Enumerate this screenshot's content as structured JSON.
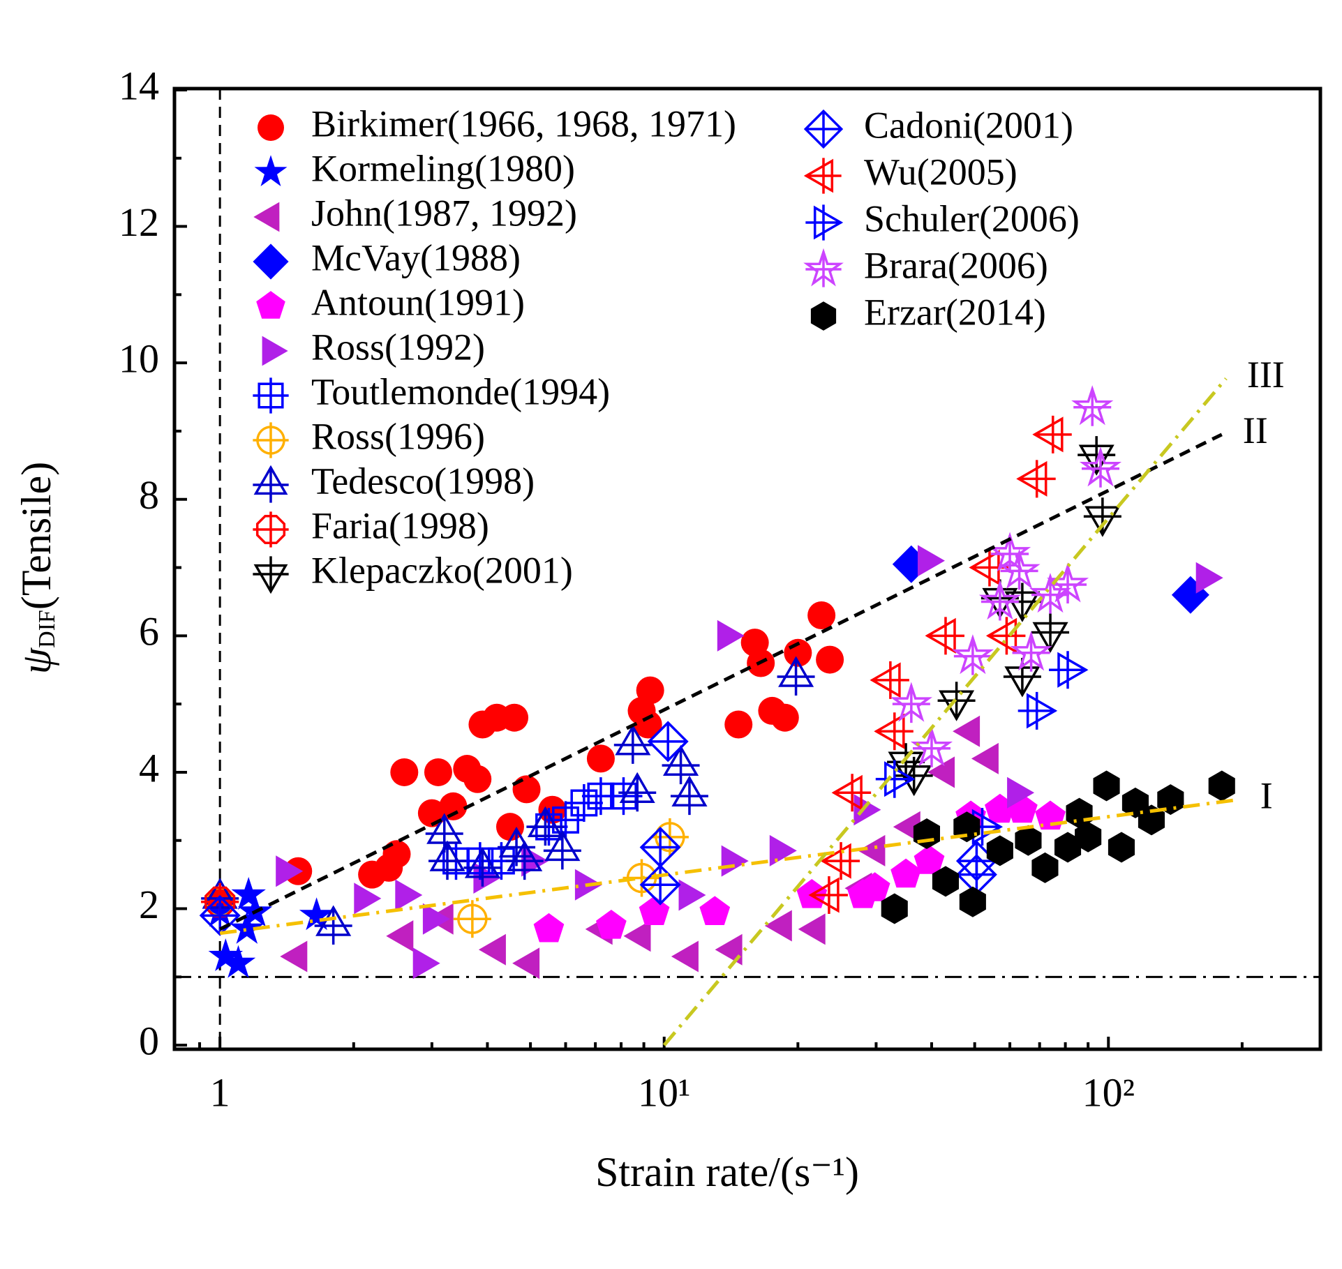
{
  "chart_data": {
    "type": "scatter",
    "xscale": "log",
    "xlim": [
      0.79,
      300
    ],
    "ylim": [
      -0.06,
      14.02
    ],
    "xticks": [
      1,
      {
        "value": 10,
        "label": "10¹"
      },
      {
        "value": 100,
        "label": "10²"
      }
    ],
    "xminorticks": [
      0.9,
      2,
      3,
      4,
      5,
      6,
      7,
      8,
      9,
      20,
      30,
      40,
      50,
      60,
      70,
      80,
      90,
      200,
      300
    ],
    "yticks": [
      0,
      2,
      4,
      6,
      8,
      10,
      12,
      14
    ],
    "yminorticks": [
      1,
      3,
      5,
      7,
      9,
      11,
      13
    ],
    "xlabel": "Strain rate/(s⁻¹)",
    "ylabel": {
      "symbol": "ψ",
      "subscript": "DIF",
      "text": "(Tensile)"
    },
    "legend": "upper left",
    "series": [
      {
        "name": "Birkimer(1966, 1968, 1971)",
        "color": "#ff0000",
        "marker": "circle",
        "fill": "filled",
        "x": [
          1.5,
          2.2,
          2.4,
          2.5,
          2.6,
          3.0,
          3.1,
          3.35,
          3.6,
          3.8,
          3.9,
          4.2,
          4.6,
          4.5,
          4.9,
          5.6,
          7.2,
          8.9,
          9.3,
          9.2,
          14.7,
          16,
          16.5,
          17.5,
          18.7,
          20,
          22.6,
          23.6,
          1
        ],
        "values": [
          2.55,
          2.5,
          2.6,
          2.8,
          4.0,
          3.4,
          4.0,
          3.5,
          4.05,
          3.9,
          4.7,
          4.8,
          4.8,
          3.2,
          3.75,
          3.45,
          4.2,
          4.9,
          5.2,
          4.7,
          4.7,
          5.9,
          5.6,
          4.9,
          4.8,
          5.75,
          6.3,
          5.65,
          2.1
        ]
      },
      {
        "name": "Kormeling(1980)",
        "color": "#0000ff",
        "marker": "star",
        "fill": "filled",
        "x": [
          1,
          1.03,
          1.1,
          1.16,
          1.15,
          1.2,
          1.65
        ],
        "values": [
          1.95,
          1.3,
          1.2,
          2.2,
          1.7,
          1.95,
          1.9
        ]
      },
      {
        "name": "John(1987, 1992)",
        "color": "#c020c0",
        "marker": "triangle-left",
        "fill": "filled",
        "x": [
          1.5,
          2.6,
          3.2,
          4.2,
          5,
          7.3,
          8.9,
          11.4,
          14.3,
          18.5,
          22,
          28,
          36,
          43,
          54,
          30,
          49
        ],
        "values": [
          1.3,
          1.6,
          1.85,
          1.4,
          1.2,
          1.7,
          1.6,
          1.3,
          1.4,
          1.75,
          1.7,
          2.3,
          3.2,
          4.0,
          4.2,
          2.85,
          4.6
        ]
      },
      {
        "name": "McVay(1988)",
        "color": "#0000ff",
        "marker": "diamond",
        "fill": "filled",
        "x": [
          36,
          153
        ],
        "values": [
          7.05,
          6.6
        ]
      },
      {
        "name": "Antoun(1991)",
        "color": "#ff00ff",
        "marker": "pentagon",
        "fill": "filled",
        "x": [
          7.6,
          9.5,
          13,
          21.5,
          28,
          35,
          39.5,
          49,
          57,
          64,
          74,
          5.5,
          29.8
        ],
        "values": [
          1.75,
          1.95,
          1.95,
          2.2,
          2.2,
          2.5,
          2.7,
          3.35,
          3.45,
          3.45,
          3.35,
          1.7,
          2.3
        ]
      },
      {
        "name": "Ross(1992)",
        "color": "#b020e8",
        "marker": "triangle-right",
        "fill": "filled",
        "x": [
          1.4,
          2.1,
          2.6,
          3,
          2.85,
          3.9,
          5,
          13.8,
          14.1,
          18.1,
          39,
          165,
          6.6,
          11.3,
          28,
          62
        ],
        "values": [
          2.55,
          2.15,
          2.2,
          1.85,
          1.2,
          2.45,
          2.7,
          6.0,
          2.7,
          2.85,
          7.1,
          6.85,
          2.35,
          2.2,
          3.45,
          3.7
        ]
      },
      {
        "name": "Toutlemonde(1994)",
        "color": "#0000ff",
        "marker": "square",
        "fill": "open-plus",
        "x": [
          3.4,
          3.85,
          4.3,
          5.5,
          6,
          6.6,
          7.2,
          8.1
        ],
        "values": [
          2.7,
          2.7,
          2.7,
          3.2,
          3.3,
          3.55,
          3.65,
          3.65
        ]
      },
      {
        "name": "Ross(1996)",
        "color": "#ffb000",
        "marker": "circle",
        "fill": "open-plus",
        "x": [
          1,
          3.7,
          8.9,
          10.3
        ],
        "values": [
          2.1,
          1.85,
          2.45,
          3.05
        ]
      },
      {
        "name": "Tedesco(1998)",
        "color": "#0000cc",
        "marker": "triangle-up",
        "fill": "open-plus",
        "x": [
          1,
          1.8,
          3.2,
          3.25,
          3.9,
          4.65,
          4.85,
          5.4,
          5.9,
          8.5,
          8.7,
          10.9,
          11.4,
          19.8
        ],
        "values": [
          2.15,
          1.75,
          3.1,
          2.7,
          2.6,
          2.9,
          2.7,
          3.2,
          2.85,
          4.4,
          3.7,
          4.1,
          3.65,
          5.4
        ]
      },
      {
        "name": "Faria(1998)",
        "color": "#ff0000",
        "marker": "octagon",
        "fill": "open-plus",
        "x": [
          1
        ],
        "values": [
          2.1
        ]
      },
      {
        "name": "Klepaczko(2001)",
        "color": "#000000",
        "marker": "triangle-down",
        "fill": "open-plus",
        "x": [
          35,
          36.5,
          57,
          64,
          74,
          64,
          94,
          97,
          45.5
        ],
        "values": [
          4.15,
          3.95,
          6.55,
          6.5,
          6.05,
          5.4,
          8.65,
          7.75,
          5.05
        ]
      },
      {
        "name": "Cadoni(2001)",
        "color": "#0000ff",
        "marker": "diamond",
        "fill": "open-plus",
        "x": [
          1,
          9.8,
          9.8,
          50.5,
          50.5,
          10.2
        ],
        "values": [
          1.9,
          2.9,
          2.35,
          2.7,
          2.5,
          4.45
        ]
      },
      {
        "name": "Wu(2005)",
        "color": "#ff0000",
        "marker": "triangle-left",
        "fill": "open-plus",
        "x": [
          23.5,
          25,
          26.5,
          32.3,
          33,
          43,
          54,
          59,
          69,
          75
        ],
        "values": [
          2.2,
          2.7,
          3.7,
          5.35,
          4.6,
          6.0,
          7.0,
          6.0,
          8.3,
          8.95
        ]
      },
      {
        "name": "Schuler(2006)",
        "color": "#0000ff",
        "marker": "triangle-right",
        "fill": "open-plus",
        "x": [
          33,
          69,
          81,
          52
        ],
        "values": [
          3.9,
          4.9,
          5.5,
          3.2
        ]
      },
      {
        "name": "Brara(2006)",
        "color": "#cc44ff",
        "marker": "star",
        "fill": "open-plus",
        "x": [
          36,
          40,
          49.5,
          57,
          60,
          63,
          67,
          74,
          81,
          92,
          96
        ],
        "values": [
          5.0,
          4.35,
          5.7,
          6.5,
          7.2,
          6.95,
          5.75,
          6.6,
          6.75,
          9.35,
          8.45
        ]
      },
      {
        "name": "Erzar(2014)",
        "color": "#000000",
        "marker": "hexagon",
        "fill": "filled",
        "x": [
          33,
          39,
          43,
          48,
          49.5,
          57,
          66,
          72,
          81,
          86,
          90,
          99,
          107,
          115,
          125,
          138,
          180
        ],
        "values": [
          2.0,
          3.1,
          2.4,
          3.2,
          2.1,
          2.85,
          3.0,
          2.6,
          2.9,
          3.4,
          3.05,
          3.8,
          2.9,
          3.55,
          3.3,
          3.6,
          3.8
        ]
      }
    ],
    "lines": [
      {
        "label": "I",
        "color": "#f5c000",
        "style": "dashdot",
        "x": [
          1,
          197
        ],
        "y": [
          1.64,
          3.6
        ]
      },
      {
        "label": "II",
        "color": "#000000",
        "style": "dashed",
        "x": [
          1,
          180
        ],
        "y": [
          1.7,
          8.95
        ]
      },
      {
        "label": "III",
        "color": "#c8c820",
        "style": "dashdot",
        "x": [
          10,
          184
        ],
        "y": [
          0,
          9.77
        ]
      }
    ],
    "reference_lines": [
      {
        "axis": "y",
        "value": 1,
        "style": "dashdot",
        "color": "#000000"
      },
      {
        "axis": "x",
        "value": 1,
        "style": "dashed",
        "color": "#000000"
      }
    ]
  }
}
